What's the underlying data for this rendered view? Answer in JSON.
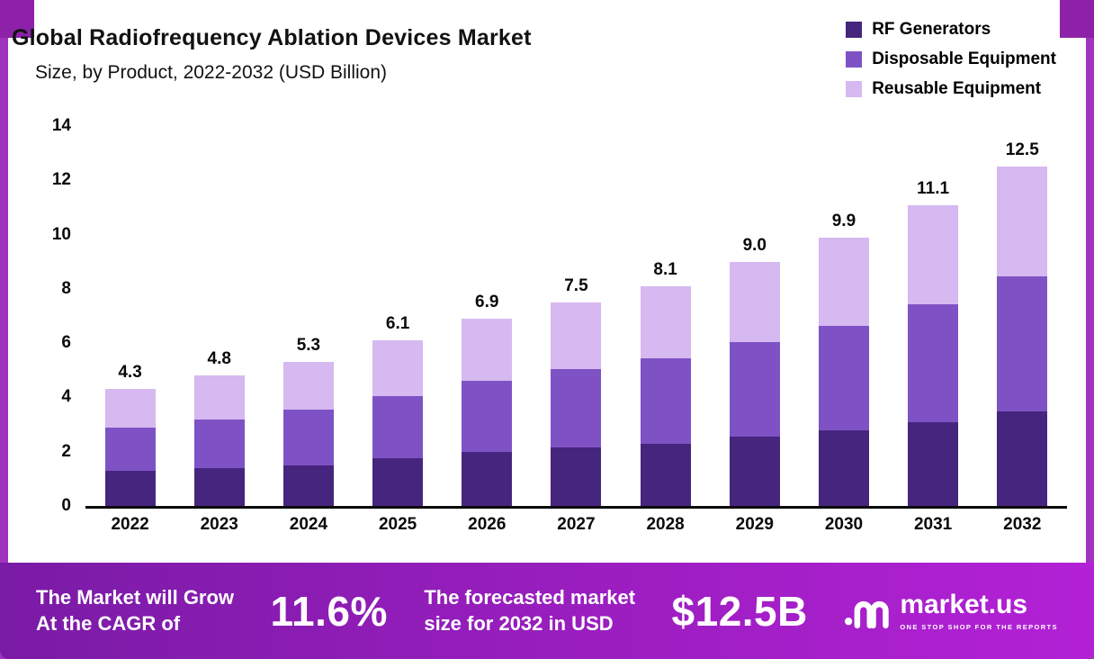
{
  "header": {
    "title": "Global Radiofrequency Ablation Devices Market",
    "subtitle": "Size, by Product, 2022-2032 (USD Billion)"
  },
  "chart_data": {
    "type": "bar",
    "stacked": true,
    "title": "Global Radiofrequency Ablation Devices Market Size, by Product, 2022-2032 (USD Billion)",
    "categories": [
      "2022",
      "2023",
      "2024",
      "2025",
      "2026",
      "2027",
      "2028",
      "2029",
      "2030",
      "2031",
      "2032"
    ],
    "series": [
      {
        "name": "RF Generators",
        "color": "#46257e",
        "values": [
          1.3,
          1.4,
          1.5,
          1.75,
          2.0,
          2.15,
          2.3,
          2.55,
          2.8,
          3.1,
          3.5
        ]
      },
      {
        "name": "Disposable Equipment",
        "color": "#7e52c5",
        "values": [
          1.6,
          1.8,
          2.05,
          2.3,
          2.6,
          2.9,
          3.15,
          3.5,
          3.85,
          4.35,
          4.95
        ]
      },
      {
        "name": "Reusable Equipment",
        "color": "#d6b9f0",
        "values": [
          1.4,
          1.6,
          1.75,
          2.05,
          2.3,
          2.45,
          2.65,
          2.95,
          3.25,
          3.65,
          4.05
        ]
      }
    ],
    "totals": [
      4.3,
      4.8,
      5.3,
      6.1,
      6.9,
      7.5,
      8.1,
      9.0,
      9.9,
      11.1,
      12.5
    ],
    "ylim": [
      0,
      14
    ],
    "yticks": [
      0,
      2,
      4,
      6,
      8,
      10,
      12,
      14
    ],
    "legend_position": "top-right",
    "grid": false
  },
  "banner": {
    "left_line1": "The Market will Grow",
    "left_line2": "At the CAGR of",
    "cagr": "11.6%",
    "mid_line1": "The forecasted market",
    "mid_line2": "size for 2032 in USD",
    "value": "$12.5B",
    "logo_text": "market.us",
    "logo_tagline": "ONE STOP SHOP FOR THE REPORTS"
  },
  "colors": {
    "side_border": "#a134be",
    "corner_square": "#8d22a8",
    "banner_gradient_start": "#7a1ba6",
    "banner_gradient_end": "#b321d6",
    "axis": "#0a0a0a"
  }
}
